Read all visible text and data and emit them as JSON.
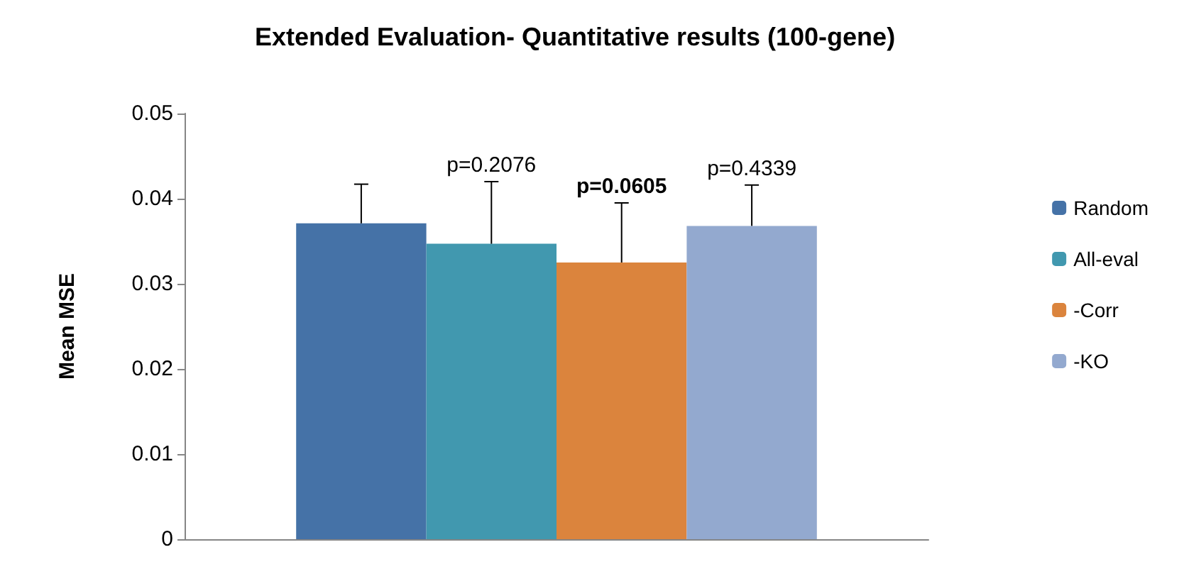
{
  "chart_data": {
    "type": "bar",
    "title": "Extended Evaluation- Quantitative results (100-gene)",
    "ylabel": "Mean MSE",
    "categories": [
      null
    ],
    "series": [
      {
        "name": "Random",
        "color": "#4572a7",
        "values": [
          0.0371
        ],
        "errors": [
          [
            0.0371,
            0.0417
          ]
        ]
      },
      {
        "name": "All-eval",
        "color": "#4198af",
        "values": [
          0.0347
        ],
        "errors": [
          [
            0.0347,
            0.042
          ]
        ]
      },
      {
        "name": "-Corr",
        "color": "#db843d",
        "values": [
          0.0325
        ],
        "errors": [
          [
            0.0325,
            0.0395
          ]
        ]
      },
      {
        "name": "-KO",
        "color": "#93a9cf",
        "values": [
          0.0368
        ],
        "errors": [
          [
            0.0368,
            0.0416
          ]
        ]
      }
    ],
    "annotations": [
      "p=0.2076",
      "p=0.0605",
      "p=0.4339"
    ],
    "ylim": [
      0,
      0.05
    ],
    "yticks": [
      0,
      0.01,
      0.02,
      0.03,
      0.04,
      0.05
    ],
    "grid": false,
    "legend": "right"
  }
}
